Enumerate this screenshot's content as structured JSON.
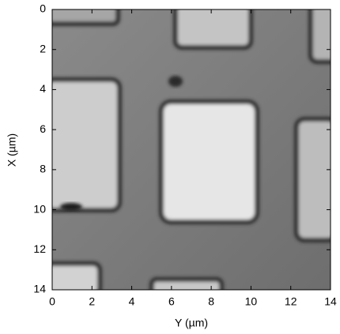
{
  "chart_data": {
    "type": "image",
    "xlabel": "Y (µm)",
    "ylabel": "X (µm)",
    "xlim": [
      0,
      14
    ],
    "xticks": [
      0,
      2,
      4,
      6,
      8,
      10,
      12,
      14
    ],
    "ylim": [
      14,
      0
    ],
    "yticks": [
      0,
      2,
      4,
      6,
      8,
      10,
      12,
      14
    ]
  }
}
